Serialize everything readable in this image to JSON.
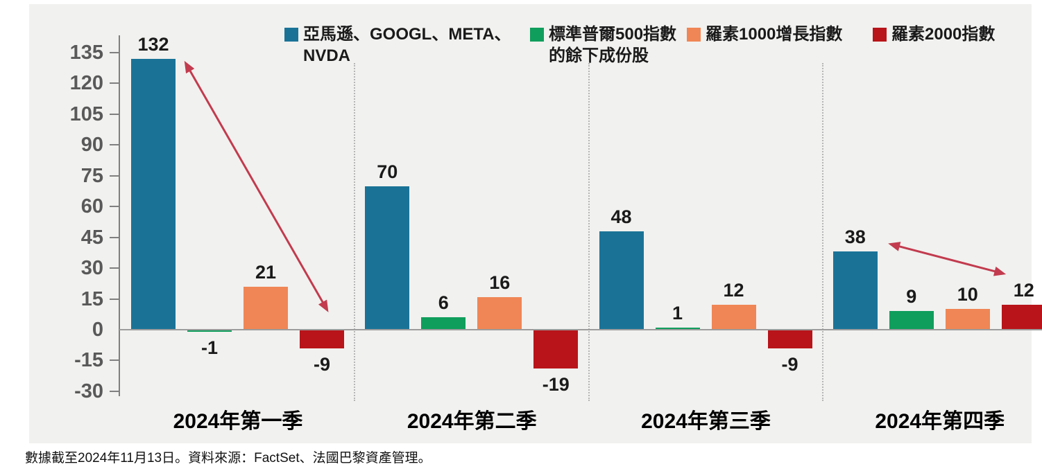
{
  "page": {
    "background": "#ffffff",
    "panel_background": "#f1f1ef",
    "axis_color": "#7f7f7f",
    "zero_line_color": "#9c9c9c",
    "separator_color": "#b5b5b5",
    "y_label_color": "#595959",
    "value_label_color": "#1a1a1a"
  },
  "footnote": "數據截至2024年11月13日。資料來源：FactSet、法國巴黎資產管理。",
  "chart_data": {
    "type": "bar",
    "title": "",
    "xlabel": "",
    "ylabel": "",
    "categories": [
      "2024年第一季",
      "2024年第二季",
      "2024年第三季",
      "2024年第四季"
    ],
    "series": [
      {
        "name": "亞馬遜、GOOGL、META、NVDA",
        "display": "亞馬遜、GOOGL、META、\nNVDA",
        "color": "#1a7397",
        "values": [
          132,
          70,
          48,
          38
        ]
      },
      {
        "name": "標準普爾500指數的餘下成份股",
        "display": "標準普爾500指數\n的餘下成份股",
        "color": "#0f9e5c",
        "values": [
          -1,
          6,
          1,
          9
        ]
      },
      {
        "name": "羅素1000增長指數",
        "display": "羅素1000增長指數",
        "color": "#f08655",
        "values": [
          21,
          16,
          12,
          10
        ]
      },
      {
        "name": "羅素2000指數",
        "display": "羅素2000指數",
        "color": "#b81419",
        "values": [
          -9,
          -19,
          -9,
          12
        ]
      }
    ],
    "value_labels": [
      [
        "132",
        "70",
        "48",
        "38"
      ],
      [
        "-1",
        "6",
        "1",
        "9"
      ],
      [
        "21",
        "16",
        "12",
        "10"
      ],
      [
        "-9",
        "-19",
        "-9",
        "12"
      ]
    ],
    "y_axis": {
      "ticks": [
        135,
        120,
        105,
        90,
        75,
        60,
        45,
        30,
        15,
        0,
        -15,
        -30
      ],
      "lim": [
        -30,
        135
      ],
      "tick_step": 15
    },
    "grid": false,
    "legend": {
      "position": "top"
    },
    "annotations": {
      "arrow_color": "#c23b4e",
      "arrows": [
        {
          "note": "Q1: from top of mega-cap bar down to Russell 2000 area",
          "x1_frac": 0.068,
          "y1_value": 131,
          "x2_frac": 0.222,
          "y2_value": 8.5
        },
        {
          "note": "Q4: from mega-cap bar across to Russell 2000 bar",
          "x1_frac": 0.82,
          "y1_value": 42,
          "x2_frac": 0.946,
          "y2_value": 27
        }
      ]
    }
  }
}
